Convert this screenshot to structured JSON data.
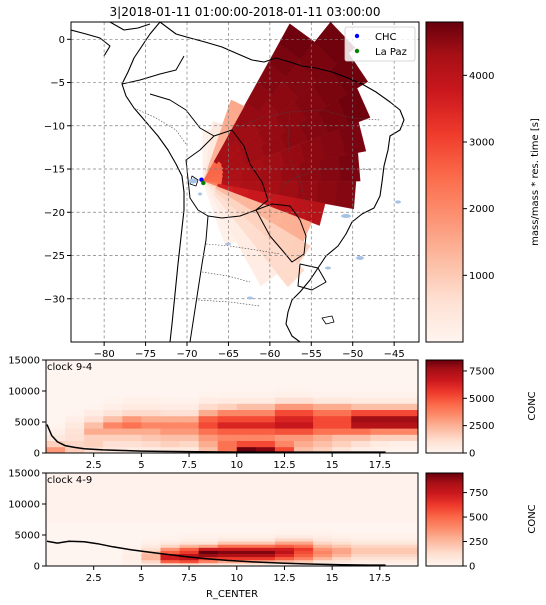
{
  "figure_title": "3|2018-01-11 01:00:00-2018-01-11 03:00:00",
  "colors": {
    "background": "#ffffff",
    "cmap_low": "#fff5f0",
    "cmap_mid": "#fb6a4a",
    "cmap_high": "#67000d",
    "water": "#a6c2e6",
    "chc_marker": "#0000ff",
    "lapaz_marker": "#008000"
  },
  "chart_data": [
    {
      "type": "heatmap",
      "subtype": "map_polar_sector_plume",
      "title": "",
      "xlim": [
        -84,
        -42
      ],
      "ylim": [
        -35,
        2
      ],
      "xticks": [
        -80,
        -75,
        -70,
        -65,
        -60,
        -55,
        -50,
        -45
      ],
      "yticks": [
        0,
        -5,
        -10,
        -15,
        -20,
        -25,
        -30
      ],
      "grid": true,
      "legend_placement": "top-right",
      "legend": [
        {
          "label": "CHC",
          "color": "#0000ff"
        },
        {
          "label": "La Paz",
          "color": "#008000"
        }
      ],
      "points": [
        {
          "name": "CHC",
          "lon": -68.13,
          "lat": -16.35
        },
        {
          "name": "La Paz",
          "lon": -68.15,
          "lat": -16.5
        }
      ],
      "center": {
        "lon": -68.1,
        "lat": -16.4
      },
      "sectors": [
        {
          "bearing_deg": 65,
          "r_max_deg": 21.5,
          "value": 4800
        },
        {
          "bearing_deg": 55,
          "r_max_deg": 23,
          "value": 4800
        },
        {
          "bearing_deg": 45,
          "r_max_deg": 24,
          "value": 4800
        },
        {
          "bearing_deg": 35,
          "r_max_deg": 21,
          "value": 4800
        },
        {
          "bearing_deg": 75,
          "r_max_deg": 20,
          "value": 4700
        },
        {
          "bearing_deg": 85,
          "r_max_deg": 19,
          "value": 4700
        },
        {
          "bearing_deg": 95,
          "r_max_deg": 18.5,
          "value": 4600
        },
        {
          "bearing_deg": 105,
          "r_max_deg": 15,
          "value": 4000
        },
        {
          "bearing_deg": 25,
          "r_max_deg": 10,
          "value": 1500
        },
        {
          "bearing_deg": 115,
          "r_max_deg": 14,
          "value": 1400
        },
        {
          "bearing_deg": 125,
          "r_max_deg": 15,
          "value": 900
        },
        {
          "bearing_deg": 135,
          "r_max_deg": 16,
          "value": 700
        },
        {
          "bearing_deg": 145,
          "r_max_deg": 14,
          "value": 250
        },
        {
          "bearing_deg": 155,
          "r_max_deg": 8,
          "value": 120
        },
        {
          "bearing_deg": 15,
          "r_max_deg": 7,
          "value": 350
        },
        {
          "bearing_deg": 5,
          "r_max_deg": 6,
          "value": 150
        }
      ],
      "colorbar": {
        "label": "mass/mass * res. time [s]",
        "range": [
          0,
          4800
        ],
        "ticks": [
          1000,
          2000,
          3000,
          4000
        ]
      }
    },
    {
      "type": "heatmap",
      "title": "",
      "annotation": "clock 9-4",
      "xlabel": "",
      "ylabel": "",
      "xlim": [
        0,
        19.5
      ],
      "ylim": [
        0,
        15000
      ],
      "xticks": [
        2.5,
        5.0,
        7.5,
        10.0,
        12.5,
        15.0,
        17.5
      ],
      "yticks": [
        0,
        5000,
        10000,
        15000
      ],
      "x_edges": [
        0,
        1,
        2,
        3,
        4,
        5,
        6,
        7,
        8,
        9,
        10,
        11,
        12,
        13,
        14,
        15,
        16,
        17,
        18,
        19,
        19.5
      ],
      "y_edges": [
        0,
        1000,
        2000,
        3000,
        4000,
        5000,
        6000,
        7000,
        8000,
        9000,
        10000,
        11000,
        12000,
        13000,
        14000,
        15000
      ],
      "z": [
        [
          3000,
          1600,
          1000,
          600,
          500,
          500,
          700,
          600,
          2000,
          4000,
          8500,
          8000,
          5000,
          2000,
          1500,
          800,
          300,
          200,
          100,
          100
        ],
        [
          1500,
          1300,
          1500,
          1000,
          1000,
          1200,
          1500,
          1300,
          2500,
          4000,
          5000,
          5000,
          3500,
          2500,
          2000,
          1500,
          1000,
          500,
          300,
          300
        ],
        [
          600,
          1000,
          1500,
          1500,
          1500,
          1800,
          2000,
          2000,
          3000,
          3500,
          3500,
          3500,
          3000,
          3000,
          2500,
          2000,
          2000,
          1500,
          1500,
          1500
        ],
        [
          300,
          900,
          2500,
          2500,
          2500,
          2500,
          3000,
          3000,
          4000,
          4500,
          4500,
          4500,
          4800,
          4800,
          4000,
          4000,
          4000,
          3500,
          3500,
          3500
        ],
        [
          100,
          600,
          2000,
          3500,
          4000,
          3500,
          3500,
          3500,
          5000,
          6000,
          6000,
          6000,
          6500,
          6500,
          5000,
          5000,
          7000,
          7000,
          7000,
          7000
        ],
        [
          0,
          300,
          1000,
          2000,
          3000,
          2500,
          2500,
          2500,
          4500,
          5000,
          5000,
          5000,
          6000,
          6000,
          5000,
          5000,
          7500,
          7500,
          7500,
          7500
        ],
        [
          0,
          100,
          400,
          800,
          1200,
          1200,
          1000,
          1000,
          2500,
          3500,
          3500,
          3500,
          5000,
          5000,
          4000,
          4000,
          5000,
          5000,
          5000,
          5000
        ],
        [
          0,
          0,
          100,
          300,
          500,
          500,
          400,
          400,
          1200,
          1500,
          2000,
          2000,
          3000,
          3000,
          2500,
          2500,
          2000,
          2000,
          2000,
          2000
        ],
        [
          0,
          0,
          0,
          100,
          200,
          200,
          150,
          150,
          400,
          500,
          500,
          500,
          1000,
          1000,
          600,
          600,
          500,
          500,
          500,
          500
        ],
        [
          0,
          0,
          0,
          0,
          50,
          50,
          50,
          50,
          100,
          150,
          150,
          150,
          200,
          200,
          150,
          150,
          150,
          150,
          150,
          150
        ],
        [
          0,
          0,
          0,
          0,
          0,
          0,
          0,
          0,
          50,
          50,
          50,
          50,
          100,
          100,
          50,
          50,
          50,
          50,
          50,
          50
        ],
        [
          0,
          0,
          0,
          0,
          0,
          0,
          0,
          0,
          0,
          0,
          0,
          0,
          0,
          0,
          0,
          0,
          0,
          0,
          0,
          0
        ],
        [
          0,
          0,
          0,
          0,
          0,
          0,
          0,
          0,
          0,
          0,
          0,
          0,
          0,
          0,
          0,
          0,
          0,
          0,
          0,
          0
        ],
        [
          0,
          0,
          0,
          0,
          0,
          0,
          0,
          0,
          0,
          0,
          0,
          0,
          0,
          0,
          0,
          0,
          0,
          0,
          0,
          0
        ],
        [
          0,
          0,
          0,
          0,
          0,
          0,
          0,
          0,
          0,
          0,
          0,
          0,
          0,
          0,
          0,
          0,
          0,
          0,
          0,
          0
        ]
      ],
      "line": {
        "x": [
          0.05,
          0.3,
          0.6,
          1.0,
          1.5,
          2.0,
          3.0,
          4.0,
          5.0,
          6.0,
          8.0,
          10.0,
          12.5,
          15.0,
          17.8
        ],
        "y": [
          4600,
          2800,
          1800,
          1200,
          900,
          700,
          500,
          400,
          300,
          250,
          200,
          150,
          150,
          150,
          150
        ]
      },
      "colorbar": {
        "label": "CONC",
        "range": [
          0,
          8500
        ],
        "ticks": [
          0,
          2500,
          5000,
          7500
        ]
      }
    },
    {
      "type": "heatmap",
      "title": "",
      "annotation": "clock 4-9",
      "xlabel": "R_CENTER",
      "ylabel": "",
      "xlim": [
        0,
        19.5
      ],
      "ylim": [
        0,
        15000
      ],
      "xticks": [
        2.5,
        5.0,
        7.5,
        10.0,
        12.5,
        15.0,
        17.5
      ],
      "yticks": [
        0,
        5000,
        10000,
        15000
      ],
      "x_edges": [
        0,
        1,
        2,
        3,
        4,
        5,
        6,
        7,
        8,
        9,
        10,
        11,
        12,
        13,
        14,
        15,
        16,
        17,
        18,
        19,
        19.5
      ],
      "y_edges": [
        0,
        500,
        1000,
        1500,
        2000,
        2500,
        3000,
        3500,
        4000,
        4500,
        5000,
        5500,
        6000,
        6500,
        7000,
        15000
      ],
      "z": [
        [
          0,
          0,
          0,
          0,
          20,
          40,
          80,
          120,
          60,
          50,
          50,
          50,
          30,
          20,
          10,
          10,
          10,
          10,
          10,
          10
        ],
        [
          0,
          0,
          0,
          0,
          30,
          150,
          500,
          550,
          400,
          300,
          300,
          300,
          250,
          200,
          100,
          80,
          50,
          50,
          50,
          50
        ],
        [
          0,
          0,
          0,
          0,
          40,
          250,
          700,
          750,
          600,
          600,
          600,
          600,
          500,
          400,
          250,
          150,
          100,
          100,
          100,
          100
        ],
        [
          0,
          0,
          0,
          0,
          40,
          250,
          700,
          750,
          850,
          800,
          800,
          800,
          650,
          500,
          350,
          250,
          150,
          150,
          150,
          150
        ],
        [
          0,
          0,
          0,
          0,
          30,
          200,
          500,
          600,
          950,
          900,
          900,
          900,
          750,
          550,
          400,
          300,
          200,
          200,
          200,
          200
        ],
        [
          0,
          0,
          0,
          0,
          20,
          120,
          350,
          500,
          700,
          700,
          700,
          700,
          700,
          600,
          350,
          300,
          200,
          200,
          200,
          200
        ],
        [
          0,
          0,
          0,
          0,
          10,
          60,
          150,
          250,
          300,
          450,
          450,
          450,
          500,
          450,
          250,
          200,
          150,
          150,
          150,
          150
        ],
        [
          0,
          0,
          0,
          0,
          0,
          30,
          60,
          100,
          100,
          200,
          200,
          200,
          300,
          300,
          150,
          120,
          80,
          80,
          80,
          80
        ],
        [
          0,
          0,
          0,
          0,
          0,
          10,
          20,
          40,
          40,
          80,
          80,
          80,
          150,
          150,
          80,
          60,
          40,
          40,
          40,
          40
        ],
        [
          0,
          0,
          0,
          0,
          0,
          0,
          10,
          20,
          20,
          30,
          30,
          30,
          60,
          60,
          40,
          30,
          20,
          20,
          20,
          20
        ],
        [
          0,
          0,
          0,
          0,
          0,
          0,
          0,
          10,
          10,
          10,
          10,
          10,
          20,
          20,
          20,
          10,
          10,
          10,
          10,
          10
        ],
        [
          0,
          0,
          0,
          0,
          0,
          0,
          0,
          0,
          0,
          0,
          0,
          0,
          10,
          10,
          10,
          0,
          0,
          0,
          0,
          0
        ],
        [
          0,
          0,
          0,
          0,
          0,
          0,
          0,
          0,
          0,
          0,
          0,
          0,
          0,
          0,
          0,
          0,
          0,
          0,
          0,
          0
        ],
        [
          0,
          0,
          0,
          0,
          0,
          0,
          0,
          0,
          0,
          0,
          0,
          0,
          0,
          0,
          0,
          0,
          0,
          0,
          0,
          0
        ],
        [
          15,
          15,
          15,
          15,
          15,
          15,
          15,
          15,
          15,
          15,
          15,
          15,
          15,
          15,
          15,
          15,
          15,
          15,
          15,
          15
        ]
      ],
      "line": {
        "x": [
          0.05,
          0.6,
          1.2,
          2.0,
          2.7,
          3.5,
          4.5,
          5.5,
          6.5,
          7.5,
          8.5,
          9.5,
          11.0,
          12.5,
          14.0,
          15.5,
          17.0,
          17.8
        ],
        "y": [
          4000,
          3700,
          4000,
          3900,
          3600,
          3100,
          2600,
          2200,
          1800,
          1450,
          1150,
          900,
          650,
          450,
          300,
          200,
          150,
          150
        ]
      },
      "colorbar": {
        "label": "CONC",
        "range": [
          0,
          950
        ],
        "ticks": [
          0,
          250,
          500,
          750
        ]
      }
    }
  ]
}
